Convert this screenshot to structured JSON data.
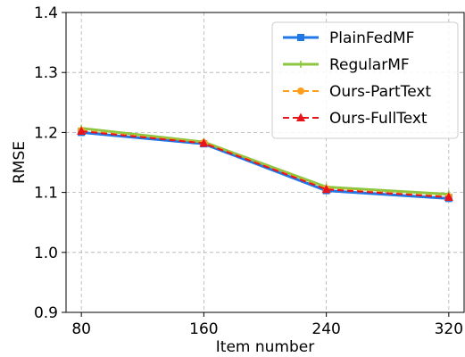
{
  "chart_data": {
    "type": "line",
    "title": "",
    "xlabel": "Item number",
    "ylabel": "RMSE",
    "x": [
      80,
      160,
      240,
      320
    ],
    "x_tick_labels": [
      "80",
      "160",
      "240",
      "320"
    ],
    "ylim": [
      0.9,
      1.4
    ],
    "y_ticks": [
      0.9,
      1.0,
      1.1,
      1.2,
      1.3,
      1.4
    ],
    "y_tick_labels": [
      "0.9",
      "1.0",
      "1.1",
      "1.2",
      "1.3",
      "1.4"
    ],
    "grid": true,
    "legend_position": "top-right",
    "series": [
      {
        "name": "PlainFedMF",
        "values": [
          1.2,
          1.181,
          1.103,
          1.09
        ],
        "color": "#1f77e8",
        "line": "solid",
        "marker": "square"
      },
      {
        "name": "RegularMF",
        "values": [
          1.207,
          1.184,
          1.109,
          1.097
        ],
        "color": "#8ec63f",
        "line": "solid",
        "marker": "plus"
      },
      {
        "name": "Ours-PartText",
        "values": [
          1.203,
          1.183,
          1.106,
          1.093
        ],
        "color": "#ff9f1c",
        "line": "dashed",
        "marker": "circle"
      },
      {
        "name": "Ours-FullText",
        "values": [
          1.202,
          1.182,
          1.105,
          1.092
        ],
        "color": "#e8141c",
        "line": "dashed",
        "marker": "triangle"
      }
    ]
  }
}
